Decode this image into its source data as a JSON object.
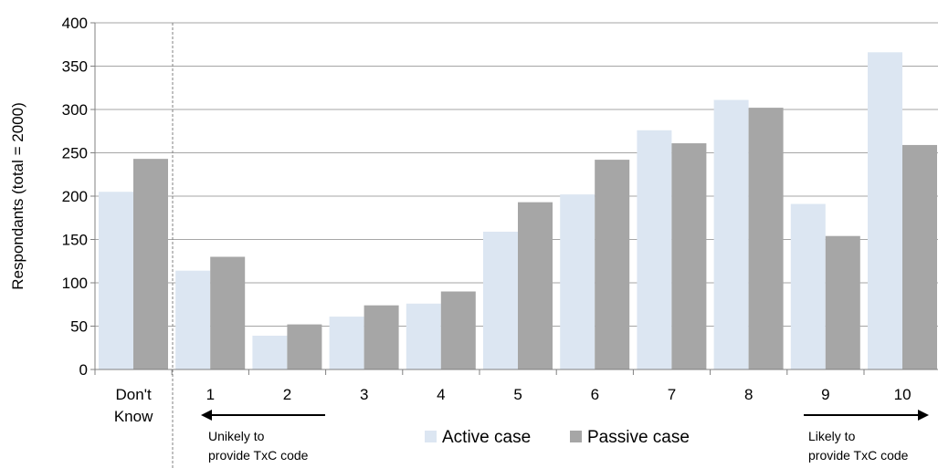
{
  "chart_data": {
    "type": "bar",
    "ylabel": "Respondants (total = 2000)",
    "xlabel": "",
    "ylim": [
      0,
      400
    ],
    "yticks": [
      0,
      50,
      100,
      150,
      200,
      250,
      300,
      350,
      400
    ],
    "grid": true,
    "categories": [
      "Don't Know",
      "1",
      "2",
      "3",
      "4",
      "5",
      "6",
      "7",
      "8",
      "9",
      "10"
    ],
    "series": [
      {
        "name": "Active case",
        "color": "#dce6f2",
        "values": [
          205,
          114,
          39,
          61,
          76,
          159,
          202,
          276,
          311,
          191,
          366
        ]
      },
      {
        "name": "Passive case",
        "color": "#a6a6a6",
        "values": [
          243,
          130,
          52,
          74,
          90,
          193,
          242,
          261,
          302,
          154,
          259
        ]
      }
    ],
    "legend_position": "bottom-center",
    "annotations": {
      "left_line1": "Unikely to",
      "left_line2": "provide TxC code",
      "right_line1": "Likely to",
      "right_line2": "provide TxC code"
    }
  }
}
